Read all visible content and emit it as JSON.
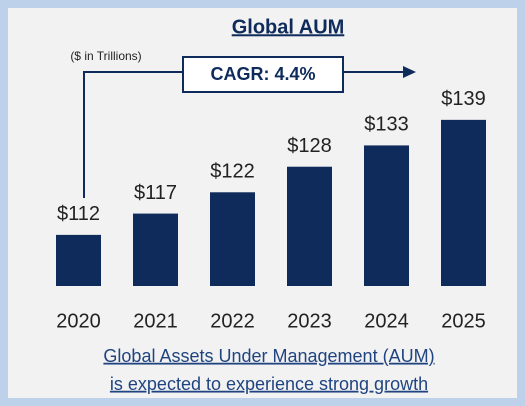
{
  "chart_data": {
    "type": "bar",
    "title": "Global AUM",
    "subtitle": "($ in Trillions)",
    "annotation": "CAGR: 4.4%",
    "categories": [
      "2020",
      "2021",
      "2022",
      "2023",
      "2024",
      "2025"
    ],
    "values": [
      112,
      117,
      122,
      128,
      133,
      139
    ],
    "value_labels": [
      "$112",
      "$117",
      "$122",
      "$128",
      "$133",
      "$139"
    ],
    "color": "#0f2b5b",
    "ylim": [
      100,
      150
    ],
    "footnote": [
      "Global Assets Under Management (AUM)",
      "is expected to experience strong growth"
    ]
  }
}
